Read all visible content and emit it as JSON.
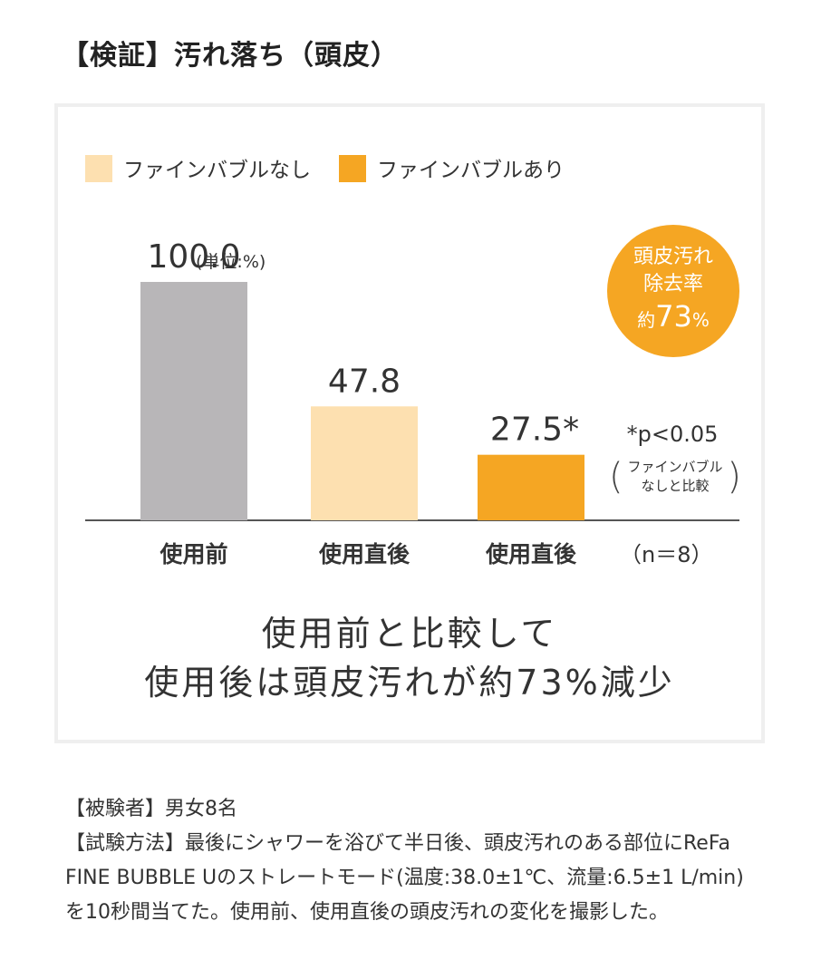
{
  "page": {
    "title": "【検証】汚れ落ち（頭皮）"
  },
  "badge": {
    "line1": "頭皮汚れ",
    "line2": "除去率",
    "prefix": "約",
    "value": "73",
    "unit": "%"
  },
  "stat_note": {
    "p_value": "*p<0.05",
    "paren_open": "(",
    "compare_line1": "ファインバブル",
    "compare_line2": "なしと比較",
    "paren_close": ")"
  },
  "sample_size": "（n＝8）",
  "conclusion": {
    "line1": "使用前と比較して",
    "line2": "使用後は頭皮汚れが約73%減少"
  },
  "notes": {
    "subjects": "【被験者】男女8名",
    "method": "【試験方法】最後にシャワーを浴びて半日後、頭皮汚れのある部位にReFa FINE BUBBLE Uのストレートモード(温度:38.0±1℃、流量:6.5±1 L/min)を10秒間当てた。使用前、使用直後の頭皮汚れの変化を撮影した。"
  },
  "colors": {
    "before": "#b8b6b8",
    "no_bubble": "#fde0b0",
    "bubble": "#f5a623",
    "axis": "#555555"
  },
  "chart_data": {
    "type": "bar",
    "title": "",
    "unit_label": "(単位:%)",
    "legend": [
      "ファインバブルなし",
      "ファインバブルあり"
    ],
    "categories": [
      "使用前",
      "使用直後",
      "使用直後"
    ],
    "values": [
      100.0,
      47.8,
      27.5
    ],
    "value_labels": [
      "100.0",
      "47.8",
      "27.5*"
    ],
    "series_of_bar": [
      "before",
      "no_bubble",
      "bubble"
    ],
    "ylim": [
      0,
      100
    ],
    "xlabel": "",
    "ylabel": "",
    "grid": false,
    "legend_position": "top-left"
  }
}
